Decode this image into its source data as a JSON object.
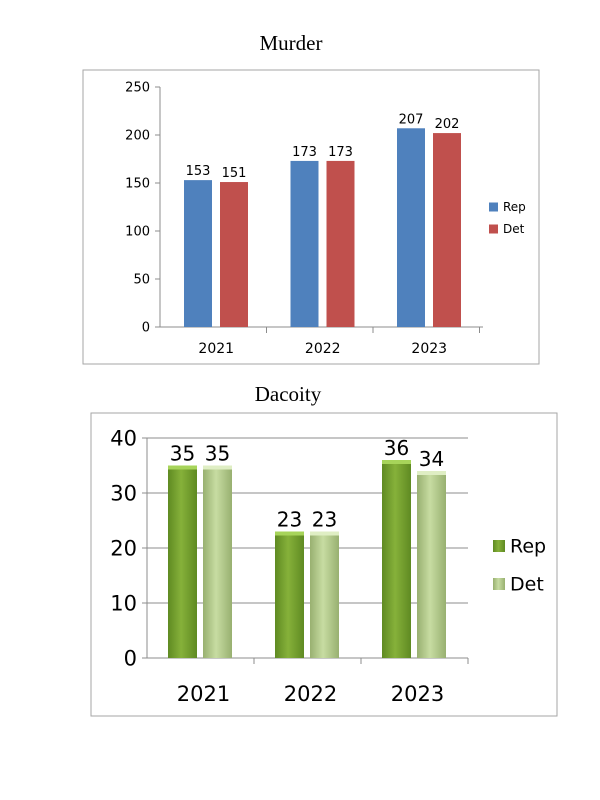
{
  "chart_data": [
    {
      "type": "bar",
      "title": "Murder",
      "categories": [
        "2021",
        "2022",
        "2023"
      ],
      "series": [
        {
          "name": "Rep",
          "values": [
            153,
            173,
            207
          ],
          "color": "#4F81BD"
        },
        {
          "name": "Det",
          "values": [
            151,
            173,
            202
          ],
          "color": "#C0504D"
        }
      ],
      "ylim": [
        0,
        250
      ],
      "yticks": [
        0,
        50,
        100,
        150,
        200,
        250
      ],
      "grid": false,
      "legend": "right",
      "xlabel": "",
      "ylabel": ""
    },
    {
      "type": "bar",
      "title": "Dacoity",
      "categories": [
        "2021",
        "2022",
        "2023"
      ],
      "series": [
        {
          "name": "Rep",
          "values": [
            35,
            23,
            36
          ],
          "color": "#77A22F"
        },
        {
          "name": "Det",
          "values": [
            35,
            23,
            34
          ],
          "color": "#B5CF8A"
        }
      ],
      "ylim": [
        0,
        40
      ],
      "yticks": [
        0,
        10,
        20,
        30,
        40
      ],
      "grid": true,
      "legend": "right",
      "xlabel": "",
      "ylabel": ""
    }
  ]
}
